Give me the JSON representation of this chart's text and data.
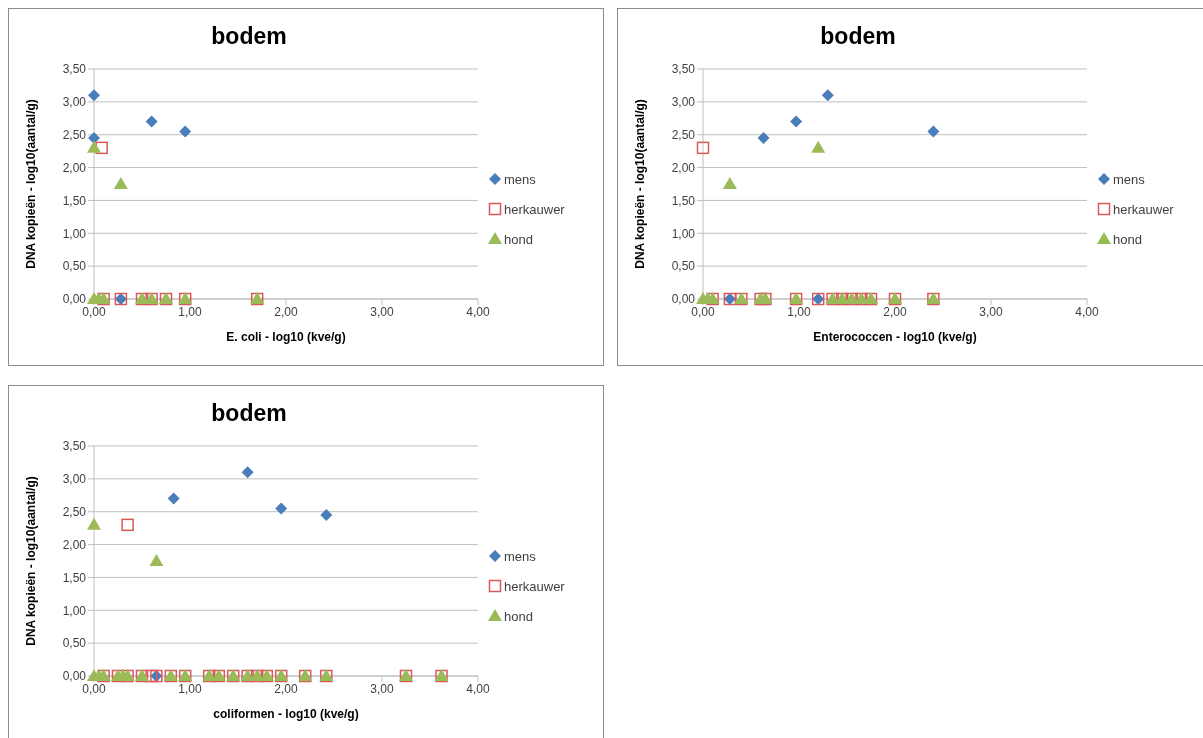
{
  "chart_data": [
    {
      "type": "scatter",
      "title": "bodem",
      "xlabel": "E. coli - log10 (kve/g)",
      "ylabel": "DNA kopieën - log10(aantal/g)",
      "xlim": [
        0,
        4
      ],
      "xticks": [
        {
          "value": 0,
          "label": "0,00"
        },
        {
          "value": 1,
          "label": "1,00"
        },
        {
          "value": 2,
          "label": "2,00"
        },
        {
          "value": 3,
          "label": "3,00"
        },
        {
          "value": 4,
          "label": "4,00"
        }
      ],
      "ylim": [
        0,
        3.5
      ],
      "yticks": [
        {
          "value": 0,
          "label": "0,00"
        },
        {
          "value": 0.5,
          "label": "0,50"
        },
        {
          "value": 1,
          "label": "1,00"
        },
        {
          "value": 1.5,
          "label": "1,50"
        },
        {
          "value": 2,
          "label": "2,00"
        },
        {
          "value": 2.5,
          "label": "2,50"
        },
        {
          "value": 3,
          "label": "3,00"
        },
        {
          "value": 3.5,
          "label": "3,50"
        }
      ],
      "grid": "y",
      "legend": "right",
      "series": [
        {
          "name": "mens",
          "color": "#4a7ebb",
          "marker": "diamond",
          "x": [
            0,
            0,
            0.6,
            0.95,
            0.28
          ],
          "values": [
            3.1,
            2.45,
            2.7,
            2.55,
            0
          ]
        },
        {
          "name": "herkauwer",
          "color": "#d9595b",
          "marker": "square",
          "x": [
            0.08,
            0.1,
            0.28,
            0.5,
            0.6,
            0.75,
            0.95,
            1.7
          ],
          "values": [
            2.3,
            0,
            0,
            0,
            0,
            0,
            0,
            0
          ]
        },
        {
          "name": "hond",
          "color": "#9bbb59",
          "marker": "triangle",
          "x": [
            0,
            0.28,
            0,
            0.05,
            0.1,
            0.5,
            0.6,
            0.75,
            0.95,
            1.7
          ],
          "values": [
            2.3,
            1.75,
            0,
            0,
            0,
            0,
            0,
            0,
            0,
            0
          ]
        }
      ]
    },
    {
      "type": "scatter",
      "title": "bodem",
      "xlabel": "Enterococcen - log10 (kve/g)",
      "ylabel": "DNA kopieën - log10(aantal/g)",
      "xlim": [
        0,
        4
      ],
      "xticks": [
        {
          "value": 0,
          "label": "0,00"
        },
        {
          "value": 1,
          "label": "1,00"
        },
        {
          "value": 2,
          "label": "2,00"
        },
        {
          "value": 3,
          "label": "3,00"
        },
        {
          "value": 4,
          "label": "4,00"
        }
      ],
      "ylim": [
        0,
        3.5
      ],
      "yticks": [
        {
          "value": 0,
          "label": "0,00"
        },
        {
          "value": 0.5,
          "label": "0,50"
        },
        {
          "value": 1,
          "label": "1,00"
        },
        {
          "value": 1.5,
          "label": "1,50"
        },
        {
          "value": 2,
          "label": "2,00"
        },
        {
          "value": 2.5,
          "label": "2,50"
        },
        {
          "value": 3,
          "label": "3,00"
        },
        {
          "value": 3.5,
          "label": "3,50"
        }
      ],
      "grid": "y",
      "legend": "right",
      "series": [
        {
          "name": "mens",
          "color": "#4a7ebb",
          "marker": "diamond",
          "x": [
            0.63,
            0.97,
            1.3,
            2.4,
            0.28,
            1.2
          ],
          "values": [
            2.45,
            2.7,
            3.1,
            2.55,
            0,
            0
          ]
        },
        {
          "name": "herkauwer",
          "color": "#d9595b",
          "marker": "square",
          "x": [
            0,
            0.1,
            0.28,
            0.4,
            0.6,
            0.65,
            0.97,
            1.2,
            1.35,
            1.45,
            1.55,
            1.65,
            1.75,
            2.0,
            2.4
          ],
          "values": [
            2.3,
            0,
            0,
            0,
            0,
            0,
            0,
            0,
            0,
            0,
            0,
            0,
            0,
            0,
            0
          ]
        },
        {
          "name": "hond",
          "color": "#9bbb59",
          "marker": "triangle",
          "x": [
            0.28,
            1.2,
            0,
            0.05,
            0.1,
            0.4,
            0.6,
            0.65,
            0.97,
            1.35,
            1.45,
            1.55,
            1.65,
            1.75,
            2.0,
            2.4
          ],
          "values": [
            1.75,
            2.3,
            0,
            0,
            0,
            0,
            0,
            0,
            0,
            0,
            0,
            0,
            0,
            0,
            0,
            0
          ]
        }
      ]
    },
    {
      "type": "scatter",
      "title": "bodem",
      "xlabel": "coliformen - log10 (kve/g)",
      "ylabel": "DNA kopieën - log10(aantal/g)",
      "xlim": [
        0,
        4
      ],
      "xticks": [
        {
          "value": 0,
          "label": "0,00"
        },
        {
          "value": 1,
          "label": "1,00"
        },
        {
          "value": 2,
          "label": "2,00"
        },
        {
          "value": 3,
          "label": "3,00"
        },
        {
          "value": 4,
          "label": "4,00"
        }
      ],
      "ylim": [
        0,
        3.5
      ],
      "yticks": [
        {
          "value": 0,
          "label": "0,00"
        },
        {
          "value": 0.5,
          "label": "0,50"
        },
        {
          "value": 1,
          "label": "1,00"
        },
        {
          "value": 1.5,
          "label": "1,50"
        },
        {
          "value": 2,
          "label": "2,00"
        },
        {
          "value": 2.5,
          "label": "2,50"
        },
        {
          "value": 3,
          "label": "3,00"
        },
        {
          "value": 3.5,
          "label": "3,50"
        }
      ],
      "grid": "y",
      "legend": "right",
      "series": [
        {
          "name": "mens",
          "color": "#4a7ebb",
          "marker": "diamond",
          "x": [
            0.83,
            1.6,
            1.95,
            2.42,
            0.65
          ],
          "values": [
            2.7,
            3.1,
            2.55,
            2.45,
            0
          ]
        },
        {
          "name": "herkauwer",
          "color": "#d9595b",
          "marker": "square",
          "x": [
            0.35,
            0.1,
            0.25,
            0.35,
            0.5,
            0.6,
            0.65,
            0.8,
            0.95,
            1.2,
            1.3,
            1.45,
            1.6,
            1.7,
            1.8,
            1.95,
            2.2,
            2.42,
            3.25,
            3.62
          ],
          "values": [
            2.3,
            0,
            0,
            0,
            0,
            0,
            0,
            0,
            0,
            0,
            0,
            0,
            0,
            0,
            0,
            0,
            0,
            0,
            0,
            0
          ]
        },
        {
          "name": "hond",
          "color": "#9bbb59",
          "marker": "triangle",
          "x": [
            0,
            0.65,
            0,
            0.05,
            0.1,
            0.25,
            0.3,
            0.35,
            0.5,
            0.8,
            0.95,
            1.2,
            1.3,
            1.45,
            1.6,
            1.7,
            1.8,
            1.95,
            2.2,
            2.42,
            3.25,
            3.62
          ],
          "values": [
            2.3,
            1.75,
            0,
            0,
            0,
            0,
            0,
            0,
            0,
            0,
            0,
            0,
            0,
            0,
            0,
            0,
            0,
            0,
            0,
            0,
            0,
            0
          ]
        }
      ]
    }
  ]
}
